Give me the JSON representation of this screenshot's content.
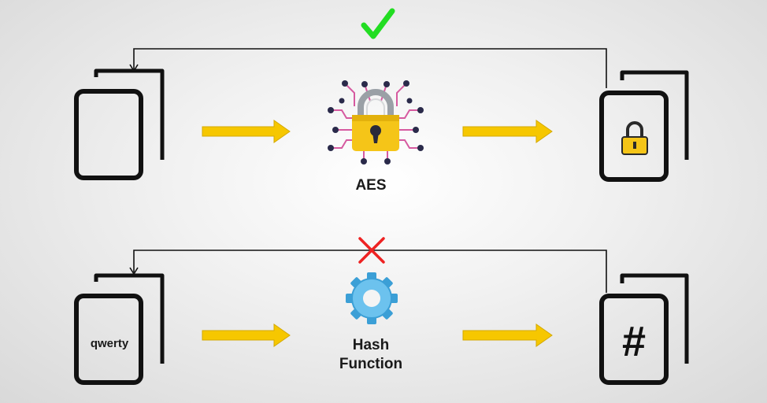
{
  "top_row": {
    "algorithm_label": "AES",
    "return_status": "reversible",
    "check_color": "#22dd22"
  },
  "bottom_row": {
    "input_text": "qwerty",
    "function_label_line1": "Hash",
    "function_label_line2": "Function",
    "output_symbol": "#",
    "return_status": "not reversible",
    "cross_color": "#ee2222"
  },
  "colors": {
    "arrow": "#f6c700",
    "arrow_stroke": "#d4a900",
    "outline": "#111111",
    "lock_body": "#f5c518",
    "lock_shackle": "#9aa0a6",
    "circuit": "#d65aa0",
    "circuit_node": "#2a2a4a",
    "gear": "#6cc2ee",
    "gear_dark": "#3b9fd6"
  },
  "icons": [
    "document-stack-icon",
    "arrow-right-icon",
    "circuit-padlock-icon",
    "padlock-icon",
    "gear-icon",
    "checkmark-icon",
    "cross-icon"
  ]
}
